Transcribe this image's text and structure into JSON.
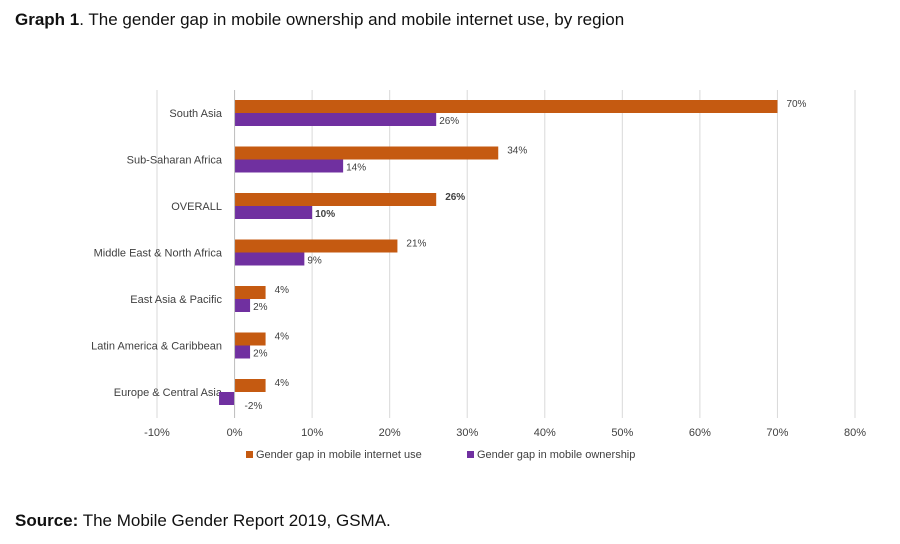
{
  "title": {
    "prefix": "Graph 1",
    "text": ". The gender gap in mobile ownership and mobile internet use, by region"
  },
  "source": {
    "prefix": "Source:",
    "text": " The Mobile Gender Report 2019, GSMA."
  },
  "colors": {
    "internet": "#c55a11",
    "ownership": "#7030a0",
    "grid": "#d9d9d9"
  },
  "chart_data": {
    "type": "bar",
    "orientation": "horizontal",
    "categories": [
      "South Asia",
      "Sub-Saharan Africa",
      "OVERALL",
      "Middle East & North Africa",
      "East Asia & Pacific",
      "Latin America & Caribbean",
      "Europe & Central Asia"
    ],
    "series": [
      {
        "name": "Gender gap in mobile internet use",
        "values": [
          70,
          34,
          26,
          21,
          4,
          4,
          4
        ],
        "labels": [
          "70%",
          "34%",
          "26%",
          "21%",
          "4%",
          "4%",
          "4%"
        ]
      },
      {
        "name": "Gender gap in mobile ownership",
        "values": [
          26,
          14,
          10,
          9,
          2,
          2,
          -2
        ],
        "labels": [
          "26%",
          "14%",
          "10%",
          "9%",
          "2%",
          "2%",
          "-2%"
        ]
      }
    ],
    "bold_category": "OVERALL",
    "xlim": [
      -10,
      80
    ],
    "xticks": [
      -10,
      0,
      10,
      20,
      30,
      40,
      50,
      60,
      70,
      80
    ],
    "xtick_labels": [
      "-10%",
      "0%",
      "10%",
      "20%",
      "30%",
      "40%",
      "50%",
      "60%",
      "70%",
      "80%"
    ],
    "grid": true,
    "legend_position": "bottom"
  }
}
